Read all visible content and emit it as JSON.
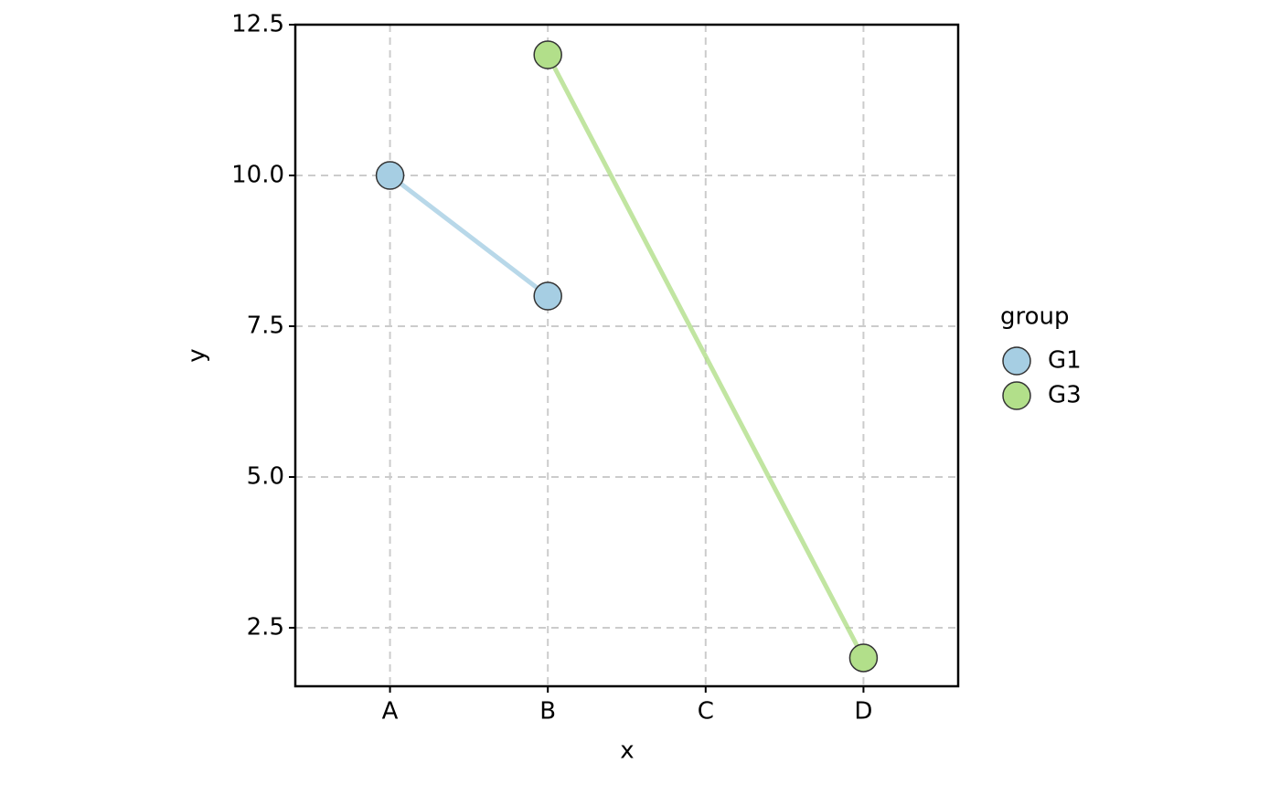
{
  "chart_data": {
    "type": "line",
    "x_label": "x",
    "y_label": "y",
    "categories": [
      "A",
      "B",
      "C",
      "D"
    ],
    "series": [
      {
        "name": "G1",
        "color": "#a6cee3",
        "x": [
          "A",
          "B"
        ],
        "values": [
          10,
          8
        ]
      },
      {
        "name": "G3",
        "color": "#b2df8a",
        "x": [
          "B",
          "D"
        ],
        "values": [
          12,
          2
        ]
      }
    ],
    "ylim": [
      1.53,
      12.5
    ],
    "yticks": [
      2.5,
      {
        "value": 5,
        "label": "5.0"
      },
      7.5,
      {
        "value": 10,
        "label": "10.0"
      },
      12.5
    ],
    "grid": true,
    "legend_title": "group",
    "legend_position": "right"
  }
}
